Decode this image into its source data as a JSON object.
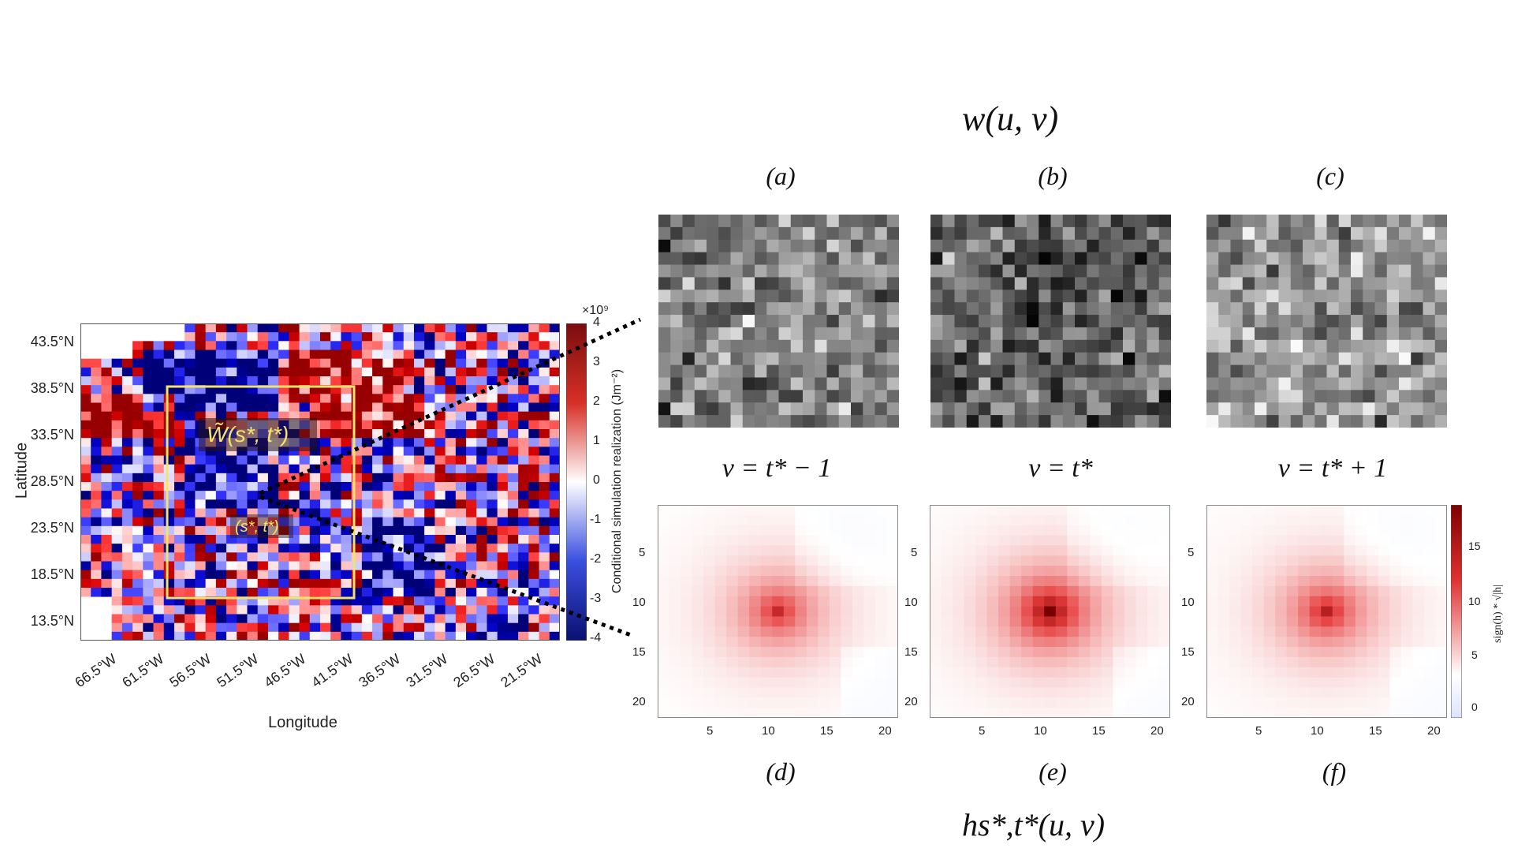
{
  "map": {
    "ylabel": "Latitude",
    "xlabel": "Longitude",
    "lat_ticks": [
      "43.5°N",
      "38.5°N",
      "33.5°N",
      "28.5°N",
      "23.5°N",
      "18.5°N",
      "13.5°N"
    ],
    "lon_ticks": [
      "66.5°W",
      "61.5°W",
      "56.5°W",
      "51.5°W",
      "46.5°W",
      "41.5°W",
      "36.5°W",
      "31.5°W",
      "26.5°W",
      "21.5°W"
    ],
    "colorbar_label": "Conditional simulation realization (Jm⁻²)",
    "colorbar_exponent": "×10⁹",
    "colorbar_ticks": [
      "4",
      "3",
      "2",
      "1",
      "0",
      "-1",
      "-2",
      "-3",
      "-4"
    ],
    "box_label": "W̃(s*, t*)",
    "point_label": "(s*, t*)"
  },
  "top_title": "w(u, v)",
  "bottom_title": "hs*,t*(u, v)",
  "top_panels": [
    {
      "label": "(a)"
    },
    {
      "label": "(b)"
    },
    {
      "label": "(c)"
    }
  ],
  "v_labels": [
    "v = t* − 1",
    "v = t*",
    "v = t* + 1"
  ],
  "bottom_panels": [
    {
      "label": "(d)",
      "peak": 0.72
    },
    {
      "label": "(e)",
      "peak": 1.0
    },
    {
      "label": "(f)",
      "peak": 0.78
    }
  ],
  "heat_axes": {
    "x_ticks": [
      "5",
      "10",
      "15",
      "20"
    ],
    "y_ticks": [
      "5",
      "10",
      "15",
      "20"
    ]
  },
  "heat_colorbar": {
    "label": "sign(h) * √|h|",
    "ticks": [
      "15",
      "10",
      "5",
      "0"
    ]
  },
  "colors": {
    "positive": "#b2182b",
    "negative": "#0b1fb4",
    "box": "#f3e36b"
  }
}
